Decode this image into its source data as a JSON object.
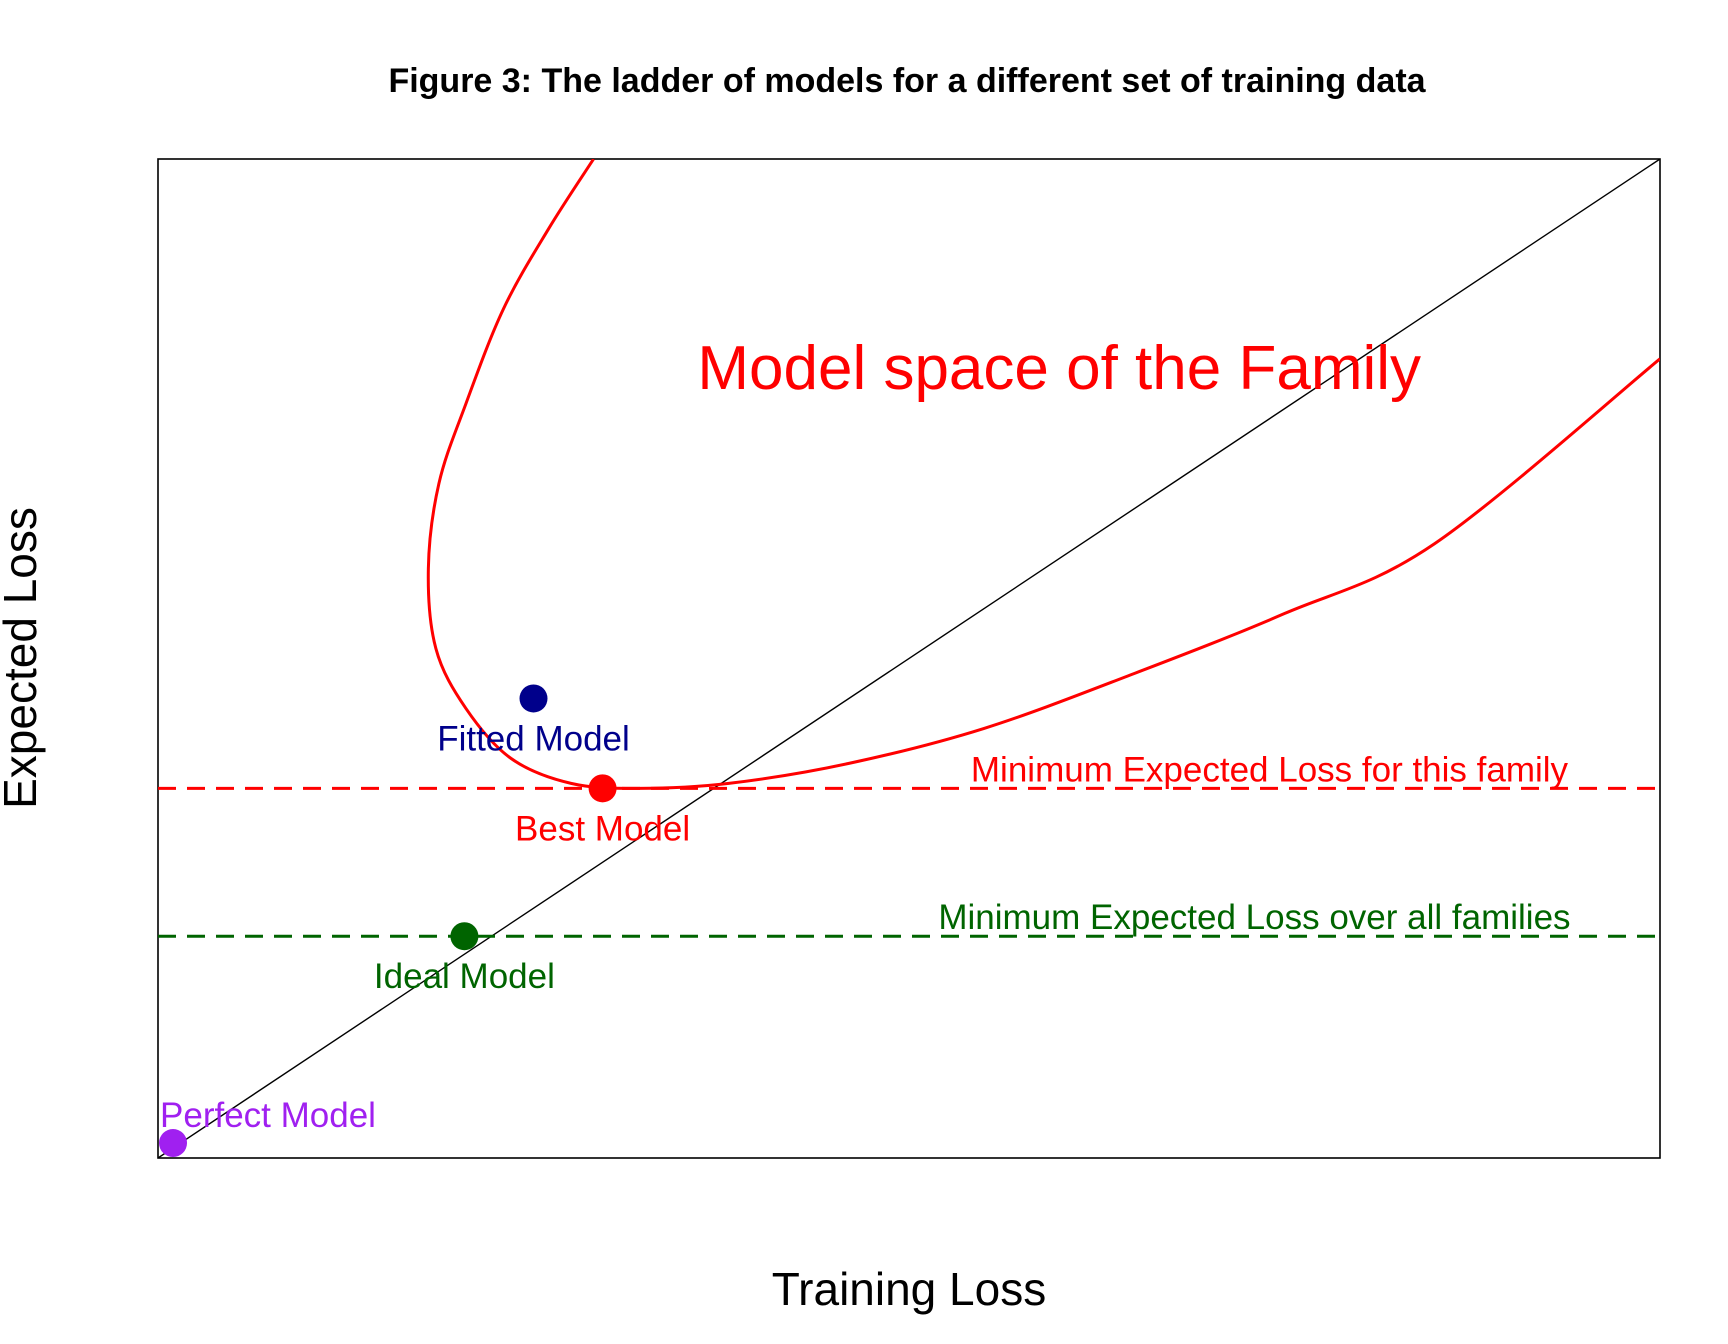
{
  "chart_data": {
    "type": "scatter",
    "title": "Figure 3: The ladder of models for a different set of training data",
    "xlabel": "Training Loss",
    "ylabel": "Expected Loss",
    "xlim": [
      0,
      10
    ],
    "ylim": [
      0,
      10
    ],
    "grid": false,
    "ticks": false,
    "region_label": "Model space of the Family",
    "region_color": "#ff0000",
    "diagonal": {
      "from": [
        0,
        0
      ],
      "to": [
        10,
        10
      ],
      "color": "#000000"
    },
    "curve": {
      "name": "",
      "color": "#ff0000",
      "points": [
        [
          2.9,
          10.0
        ],
        [
          2.6,
          9.3
        ],
        [
          2.3,
          8.5
        ],
        [
          2.05,
          7.55
        ],
        [
          1.87,
          6.75
        ],
        [
          1.8,
          5.9
        ],
        [
          1.85,
          5.1
        ],
        [
          2.05,
          4.5
        ],
        [
          2.35,
          4.0
        ],
        [
          2.75,
          3.75
        ],
        [
          3.2,
          3.7
        ],
        [
          3.8,
          3.75
        ],
        [
          4.6,
          3.95
        ],
        [
          5.5,
          4.3
        ],
        [
          6.5,
          4.85
        ],
        [
          7.5,
          5.45
        ],
        [
          8.5,
          6.15
        ],
        [
          10.0,
          8.0
        ]
      ]
    },
    "hlines": [
      {
        "y": 3.7,
        "label": "Minimum Expected Loss for this family",
        "color": "#ff0000",
        "style": "dashed",
        "label_x": 7.4
      },
      {
        "y": 2.22,
        "label": "Minimum Expected Loss over all families",
        "color": "#006400",
        "style": "dashed",
        "label_x": 7.3
      }
    ],
    "points": [
      {
        "name": "Fitted Model",
        "x": 2.5,
        "y": 4.6,
        "color": "#00008b",
        "label_pos": "below"
      },
      {
        "name": "Best Model",
        "x": 2.96,
        "y": 3.7,
        "color": "#ff0000",
        "label_pos": "below"
      },
      {
        "name": "Ideal Model",
        "x": 2.04,
        "y": 2.22,
        "color": "#006400",
        "label_pos": "below"
      },
      {
        "name": "Perfect Model",
        "x": 0.1,
        "y": 0.15,
        "color": "#a020f0",
        "label_pos": "above-right"
      }
    ]
  }
}
